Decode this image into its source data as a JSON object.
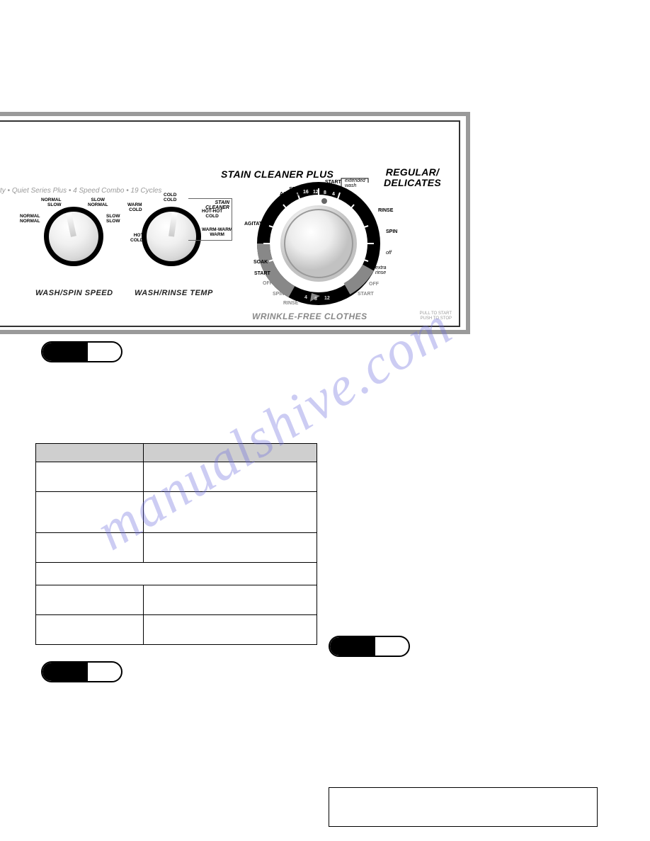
{
  "watermark_text": "manualshive.com",
  "panel": {
    "subtitle_fragment": "ty  •  Quiet Series Plus  •  4 Speed Combo  •  19 Cycles",
    "pull_to_start_line1": "PULL TO START",
    "pull_to_start_line2": "PUSH TO STOP",
    "knob1": {
      "title": "WASH/SPIN SPEED",
      "labels": {
        "top_left": "NORMAL\nSLOW",
        "top_right": "SLOW\nNORMAL",
        "mid_left": "NORMAL\nNORMAL",
        "mid_right": "SLOW\nSLOW"
      }
    },
    "knob2": {
      "title": "WASH/RINSE TEMP",
      "stain_cleaner_label": "STAIN CLEANER",
      "labels": {
        "top": "COLD\nCOLD",
        "top_left": "WARM\nCOLD",
        "right1": "HOT-HOT\nCOLD",
        "right2": "WARM-WARM\nWARM",
        "bottom_left": "HOT\nCOLD"
      }
    },
    "main_dial": {
      "heading_top": "STAIN CLEANER PLUS",
      "heading_right_line1": "REGULAR/",
      "heading_right_line2": "DELICATES",
      "heading_bottom": "WRINKLE-FREE CLOTHES",
      "labels": {
        "start_top": "START",
        "extended_wash": "extended\nwash",
        "spin_agitate": "SPIN\nAGITATE",
        "agitate_left": "AGITATE",
        "soak": "SOAK",
        "start_left": "START",
        "off_left": "OFF",
        "spin_bottom": "SPIN",
        "rinse_bottom": "RINSE",
        "rinse_right": "RINSE",
        "spin_right": "SPIN",
        "off_right": "off",
        "extra_rinse": "extra\nrinse",
        "off_br": "OFF",
        "start_br": "START"
      },
      "nums_top": [
        "16",
        "12",
        "8",
        "4"
      ],
      "nums_bottom": [
        "4",
        "8",
        "12"
      ]
    }
  },
  "table": {
    "rows": 6
  }
}
